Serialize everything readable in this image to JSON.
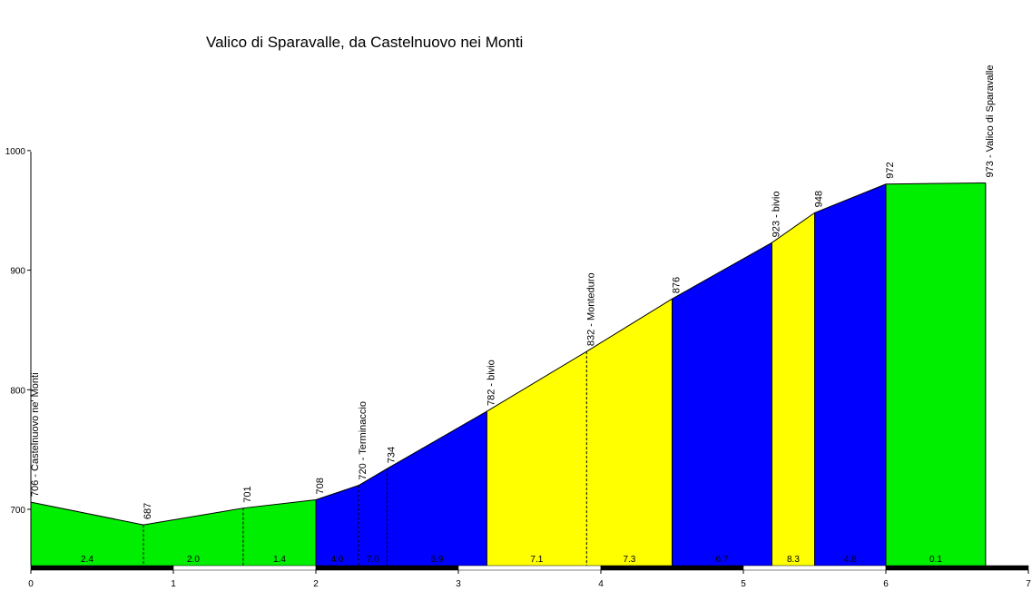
{
  "chart_data": {
    "type": "area",
    "title": "Valico di Sparavalle, da Castelnuovo nei Monti",
    "xlim": [
      0,
      7
    ],
    "ylim": [
      650,
      1000
    ],
    "x_ticks": [
      "0",
      "1",
      "2",
      "3",
      "4",
      "5",
      "6",
      "7"
    ],
    "y_ticks": [
      "700",
      "800",
      "900",
      "1000"
    ],
    "points": [
      {
        "x": 0.0,
        "y": 706,
        "label": "706 - Castelnuovo ne' Monti"
      },
      {
        "x": 0.79,
        "y": 687,
        "label": "687"
      },
      {
        "x": 1.49,
        "y": 701,
        "label": "701"
      },
      {
        "x": 2.0,
        "y": 708,
        "label": "708"
      },
      {
        "x": 2.3,
        "y": 720,
        "label": "720 - Terminaccio"
      },
      {
        "x": 2.5,
        "y": 734,
        "label": "734"
      },
      {
        "x": 3.2,
        "y": 782,
        "label": "782 - bivio"
      },
      {
        "x": 3.9,
        "y": 832,
        "label": "832 - Monteduro"
      },
      {
        "x": 4.5,
        "y": 876,
        "label": "876"
      },
      {
        "x": 5.2,
        "y": 923,
        "label": "923 - bivio"
      },
      {
        "x": 5.5,
        "y": 948,
        "label": "948"
      },
      {
        "x": 6.0,
        "y": 972,
        "label": "972"
      },
      {
        "x": 6.7,
        "y": 973,
        "label": "973 - Valico di Sparavalle"
      }
    ],
    "segments": [
      {
        "from": 0.0,
        "to": 0.79,
        "gradient": "2.4",
        "color": "#00ee00"
      },
      {
        "from": 0.79,
        "to": 1.49,
        "gradient": "2.0",
        "color": "#00ee00"
      },
      {
        "from": 1.49,
        "to": 2.0,
        "gradient": "1.4",
        "color": "#00ee00"
      },
      {
        "from": 2.0,
        "to": 2.3,
        "gradient": "4.0",
        "color": "#0000ff"
      },
      {
        "from": 2.3,
        "to": 2.5,
        "gradient": "7.0",
        "color": "#0000ff"
      },
      {
        "from": 2.5,
        "to": 3.2,
        "gradient": "6.9",
        "color": "#0000ff"
      },
      {
        "from": 3.2,
        "to": 3.9,
        "gradient": "7.1",
        "color": "#ffff00"
      },
      {
        "from": 3.9,
        "to": 4.5,
        "gradient": "7.3",
        "color": "#ffff00"
      },
      {
        "from": 4.5,
        "to": 5.2,
        "gradient": "6.7",
        "color": "#0000ff"
      },
      {
        "from": 5.2,
        "to": 5.5,
        "gradient": "8.3",
        "color": "#ffff00"
      },
      {
        "from": 5.5,
        "to": 6.0,
        "gradient": "4.8",
        "color": "#0000ff"
      },
      {
        "from": 6.0,
        "to": 6.7,
        "gradient": "0.1",
        "color": "#00ee00"
      }
    ],
    "grid": false,
    "legend": "none"
  }
}
